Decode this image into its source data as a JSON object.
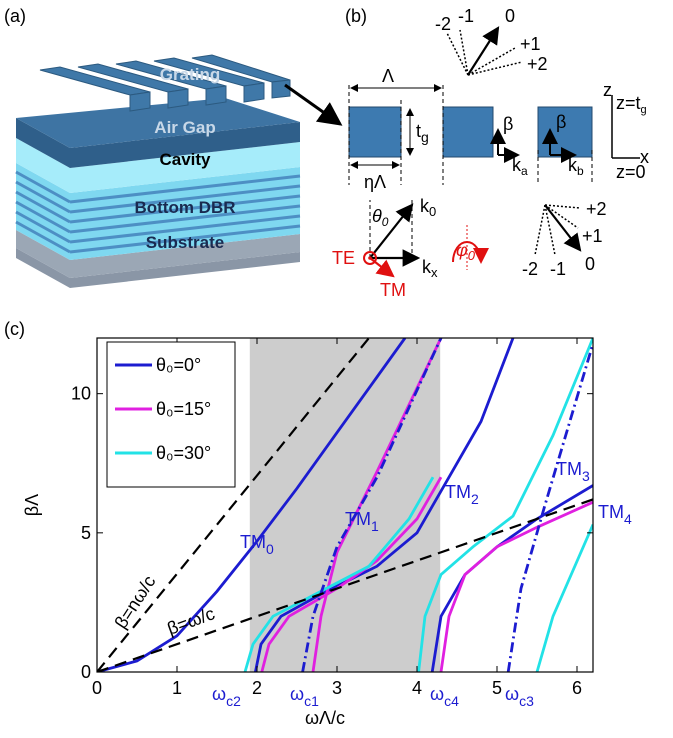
{
  "panel_a": {
    "label": "(a)",
    "layers": [
      "Grating",
      "Air Gap",
      "Cavity",
      "Bottom DBR",
      "Substrate"
    ]
  },
  "panel_b": {
    "label": "(b)",
    "period": "Λ",
    "thickness": {
      "text": "t",
      "sub": "g"
    },
    "fill_width": "ηΛ",
    "k0": {
      "text": "k",
      "sub": "0"
    },
    "kx": {
      "text": "k",
      "sub": "x"
    },
    "theta": {
      "text": "θ",
      "sub": "0"
    },
    "phi": {
      "text": "φ",
      "sub": "0"
    },
    "te": "TE",
    "tm": "TM",
    "z_axis": "z",
    "x_axis": "x",
    "z_top": {
      "text": "z=t",
      "sub": "g"
    },
    "z_bottom": "z=0",
    "beta_a": "β",
    "beta_b": "β",
    "ka": {
      "text": "k",
      "sub": "a"
    },
    "kb": {
      "text": "k",
      "sub": "b"
    },
    "orders_top": [
      "-2",
      "-1",
      "0",
      "+1",
      "+2"
    ],
    "orders_bottom": [
      "+2",
      "+1",
      "0",
      "-1",
      "-2"
    ]
  },
  "panel_c_label": "(c)",
  "chart_data": {
    "type": "line",
    "x_label": "ωΛ/c",
    "y_label": "βΛ",
    "xlim": [
      0,
      6.2
    ],
    "ylim": [
      0,
      12
    ],
    "xticks": [
      0,
      1,
      2,
      3,
      4,
      5,
      6
    ],
    "yticks": [
      0,
      5,
      10
    ],
    "shaded_xrange": [
      1.91,
      4.29
    ],
    "series": [
      {
        "name": "θ₀=0°",
        "color": "#1c1cd0",
        "style": "solid",
        "x": [
          0,
          0.5,
          1,
          1.5,
          2,
          2.5,
          3,
          3.5,
          3.85,
          null,
          1.98,
          2.05,
          2.3,
          2.8,
          3.5,
          4,
          4.4,
          4.8,
          5.2,
          null,
          4.19,
          4.3,
          4.6,
          5,
          5.5,
          6.2
        ],
        "values": [
          0,
          0.4,
          1.3,
          2.9,
          4.7,
          6.6,
          8.6,
          10.6,
          12,
          null,
          0,
          1,
          2,
          2.8,
          3.8,
          5,
          7,
          9,
          12,
          null,
          0,
          2,
          3.5,
          4.5,
          5.5,
          6.7
        ]
      },
      {
        "name": "θ₀=15°",
        "color": "#e020e0",
        "style": "solid",
        "x": [
          2.06,
          2.15,
          2.4,
          3,
          3.5,
          4,
          4.3,
          null,
          2.7,
          2.8,
          3,
          3.5,
          4.3,
          null,
          4.3,
          4.4,
          4.6,
          5,
          5.5,
          6.2
        ],
        "values": [
          0,
          1,
          2,
          3,
          4,
          5.5,
          7,
          null,
          0,
          2,
          4.3,
          7.2,
          12,
          null,
          0,
          2,
          3.5,
          4.5,
          5.2,
          6.1
        ]
      },
      {
        "name": "θ₀=30°",
        "color": "#22e2e6",
        "style": "solid",
        "x": [
          1.85,
          1.95,
          2.2,
          2.8,
          3.4,
          3.9,
          4.2,
          null,
          4.02,
          4.1,
          4.3,
          4.7,
          5.2,
          5.7,
          6.2,
          null,
          5.5,
          5.7,
          6.2
        ],
        "values": [
          0,
          1,
          2,
          2.9,
          3.8,
          5.5,
          7,
          null,
          0,
          2,
          3.5,
          4.5,
          5.6,
          8.5,
          12,
          null,
          0,
          2,
          5.3
        ]
      },
      {
        "color": "#1c1cd0",
        "style": "dashdot",
        "x": [
          2.57,
          2.7,
          3,
          3.5,
          4.3,
          null,
          5.14,
          5.3,
          5.6,
          6.2
        ],
        "values": [
          0,
          2,
          4.5,
          7,
          12,
          null,
          0,
          3,
          6,
          11.8
        ]
      },
      {
        "color": "#000000",
        "style": "dashed",
        "x": [
          0,
          3.4,
          null,
          0,
          6.2
        ],
        "values": [
          0,
          12,
          null,
          0,
          6.2
        ]
      }
    ],
    "annotations": [
      {
        "text": "TM",
        "sub": "0",
        "color": "#1c1cd0"
      },
      {
        "text": "TM",
        "sub": "1",
        "color": "#1c1cd0"
      },
      {
        "text": "TM",
        "sub": "2",
        "color": "#1c1cd0"
      },
      {
        "text": "TM",
        "sub": "3",
        "color": "#1c1cd0"
      },
      {
        "text": "TM",
        "sub": "4",
        "color": "#1c1cd0"
      },
      {
        "text": "β=nω/c",
        "sub": "",
        "color": "#000000"
      },
      {
        "text": "β=ω/c",
        "sub": "",
        "color": "#000000"
      },
      {
        "text": "ω",
        "sub": "c2",
        "color": "#1c1cd0"
      },
      {
        "text": "ω",
        "sub": "c1",
        "color": "#1c1cd0"
      },
      {
        "text": "ω",
        "sub": "c4",
        "color": "#1c1cd0"
      },
      {
        "text": "ω",
        "sub": "c3",
        "color": "#1c1cd0"
      }
    ]
  }
}
